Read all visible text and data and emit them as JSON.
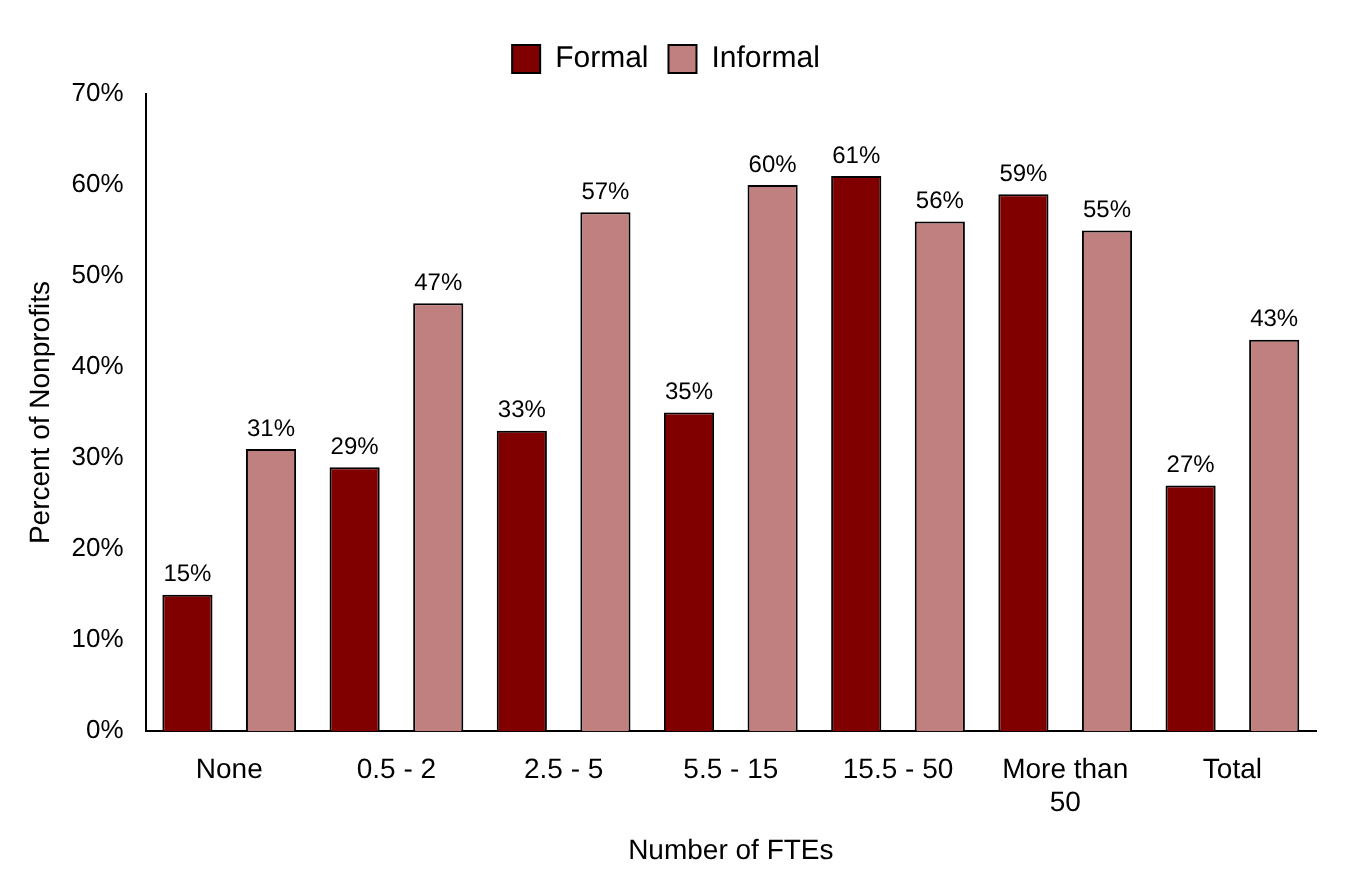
{
  "chart_data": {
    "type": "bar",
    "xlabel": "Number of FTEs",
    "ylabel": "Percent of Nonprofits",
    "categories": [
      "None",
      "0.5 - 2",
      "2.5 - 5",
      "5.5 - 15",
      "15.5 - 50",
      "More than 50",
      "Total"
    ],
    "series": [
      {
        "name": "Formal",
        "color": "#800000",
        "values": [
          15,
          29,
          33,
          35,
          61,
          59,
          27
        ],
        "value_labels": [
          "15%",
          "29%",
          "33%",
          "35%",
          "61%",
          "59%",
          "27%"
        ]
      },
      {
        "name": "Informal",
        "color": "#c08080",
        "values": [
          31,
          47,
          57,
          60,
          56,
          55,
          43
        ],
        "value_labels": [
          "31%",
          "47%",
          "57%",
          "60%",
          "56%",
          "55%",
          "43%"
        ]
      }
    ],
    "ylim": [
      0,
      70
    ],
    "yticks": [
      {
        "value": 0,
        "label": "0%"
      },
      {
        "value": 10,
        "label": "10%"
      },
      {
        "value": 20,
        "label": "20%"
      },
      {
        "value": 30,
        "label": "30%"
      },
      {
        "value": 40,
        "label": "40%"
      },
      {
        "value": 50,
        "label": "50%"
      },
      {
        "value": 60,
        "label": "60%"
      },
      {
        "value": 70,
        "label": "70%"
      }
    ],
    "legend": "top"
  }
}
